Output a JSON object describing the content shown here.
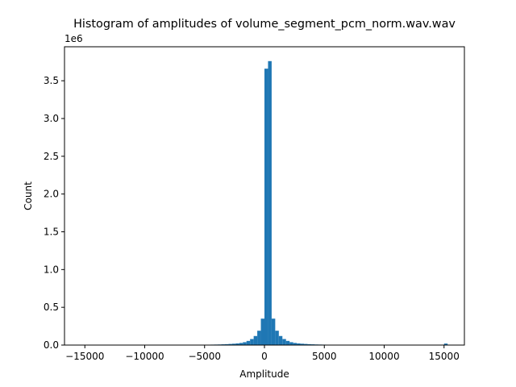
{
  "chart_data": {
    "type": "bar",
    "title": "Histogram of amplitudes of volume_segment_pcm_norm.wav.wav",
    "xlabel": "Amplitude",
    "ylabel": "Count",
    "y_offset_label": "1e6",
    "xlim": [
      -16700,
      16700
    ],
    "ylim": [
      0,
      3.95
    ],
    "x_ticks": [
      -15000,
      -10000,
      -5000,
      0,
      5000,
      10000,
      15000
    ],
    "x_tick_labels": [
      "−15000",
      "−10000",
      "−5000",
      "0",
      "5000",
      "10000",
      "15000"
    ],
    "y_ticks": [
      0.0,
      0.5,
      1.0,
      1.5,
      2.0,
      2.5,
      3.0,
      3.5
    ],
    "y_tick_labels": [
      "0.0",
      "0.5",
      "1.0",
      "1.5",
      "2.0",
      "2.5",
      "3.0",
      "3.5"
    ],
    "bin_width": 300,
    "bin_start": -5100,
    "series": [
      {
        "color": "#1f77b4",
        "bins": [
          [
            -5100,
            0.004
          ],
          [
            -4800,
            0.005
          ],
          [
            -4500,
            0.006
          ],
          [
            -4200,
            0.007
          ],
          [
            -3900,
            0.008
          ],
          [
            -3600,
            0.01
          ],
          [
            -3300,
            0.012
          ],
          [
            -3000,
            0.015
          ],
          [
            -2700,
            0.018
          ],
          [
            -2400,
            0.022
          ],
          [
            -2100,
            0.028
          ],
          [
            -1800,
            0.038
          ],
          [
            -1500,
            0.055
          ],
          [
            -1200,
            0.08
          ],
          [
            -900,
            0.12
          ],
          [
            -600,
            0.19
          ],
          [
            -300,
            0.35
          ],
          [
            0,
            3.66
          ],
          [
            300,
            3.76
          ],
          [
            600,
            0.35
          ],
          [
            900,
            0.19
          ],
          [
            1200,
            0.12
          ],
          [
            1500,
            0.08
          ],
          [
            1800,
            0.055
          ],
          [
            2100,
            0.038
          ],
          [
            2400,
            0.028
          ],
          [
            2700,
            0.022
          ],
          [
            3000,
            0.018
          ],
          [
            3300,
            0.015
          ],
          [
            3600,
            0.012
          ],
          [
            3900,
            0.01
          ],
          [
            4200,
            0.008
          ],
          [
            4500,
            0.007
          ],
          [
            4800,
            0.006
          ],
          [
            15000,
            0.02
          ]
        ]
      }
    ],
    "grid": false
  }
}
